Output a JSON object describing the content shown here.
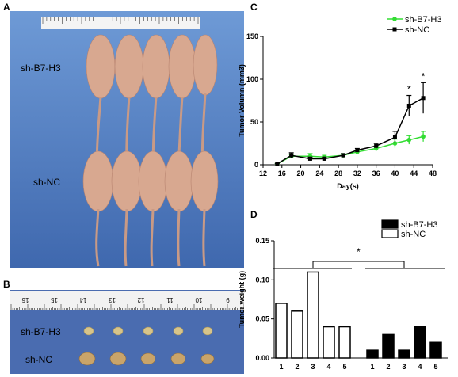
{
  "panels": {
    "a": "A",
    "b": "B",
    "c": "C",
    "d": "D"
  },
  "photo_a": {
    "label_top": "sh-B7-H3",
    "label_bottom": "sh-NC"
  },
  "photo_b": {
    "label_top": "sh-B7-H3",
    "label_bottom": "sh-NC",
    "ruler_numbers": [
      "16",
      "15",
      "14",
      "13",
      "12",
      "11",
      "10",
      "9"
    ]
  },
  "colors": {
    "green": "#33dd33",
    "black": "#000000",
    "skin": "#d8a890",
    "bg_a": "#5a86c8",
    "bg_b": "#4a6cb0"
  },
  "chart_data": [
    {
      "type": "line",
      "panel": "C",
      "xlabel": "Day(s)",
      "ylabel": "Tumor Volumn (mm3)",
      "xlim": [
        12,
        48
      ],
      "ylim": [
        0,
        150
      ],
      "xticks": [
        12,
        16,
        20,
        24,
        28,
        32,
        36,
        40,
        44,
        48
      ],
      "yticks": [
        0,
        50,
        100,
        150
      ],
      "legend_position": "top-right",
      "annotation": "*",
      "significant_x": [
        43,
        46
      ],
      "series": [
        {
          "name": "sh-B7-H3",
          "color": "#33dd33",
          "x": [
            15,
            18,
            22,
            25,
            29,
            32,
            36,
            40,
            43,
            46
          ],
          "y": [
            1,
            10,
            10,
            9,
            11,
            15,
            19,
            25,
            29,
            33
          ],
          "err": [
            0.5,
            2,
            3,
            2,
            2,
            2,
            3,
            5,
            5,
            6
          ]
        },
        {
          "name": "sh-NC",
          "color": "#000000",
          "x": [
            15,
            18,
            22,
            25,
            29,
            32,
            36,
            40,
            43,
            46
          ],
          "y": [
            1,
            11,
            7,
            7,
            11,
            17,
            22,
            32,
            69,
            78
          ],
          "err": [
            0.5,
            3,
            2,
            2,
            2,
            2,
            3,
            7,
            12,
            18
          ]
        }
      ]
    },
    {
      "type": "bar",
      "panel": "D",
      "ylabel": "Tumor weight (g)",
      "ylim": [
        0,
        0.15
      ],
      "yticks": [
        "0.00",
        "0.05",
        "0.10",
        "0.15"
      ],
      "categories": [
        "1",
        "2",
        "3",
        "4",
        "5"
      ],
      "legend_position": "top-right",
      "annotation": "*",
      "series": [
        {
          "name": "sh-NC",
          "fill": "white",
          "values": [
            0.07,
            0.06,
            0.11,
            0.04,
            0.04
          ]
        },
        {
          "name": "sh-B7-H3",
          "fill": "black",
          "values": [
            0.01,
            0.03,
            0.01,
            0.04,
            0.02
          ]
        }
      ]
    }
  ]
}
